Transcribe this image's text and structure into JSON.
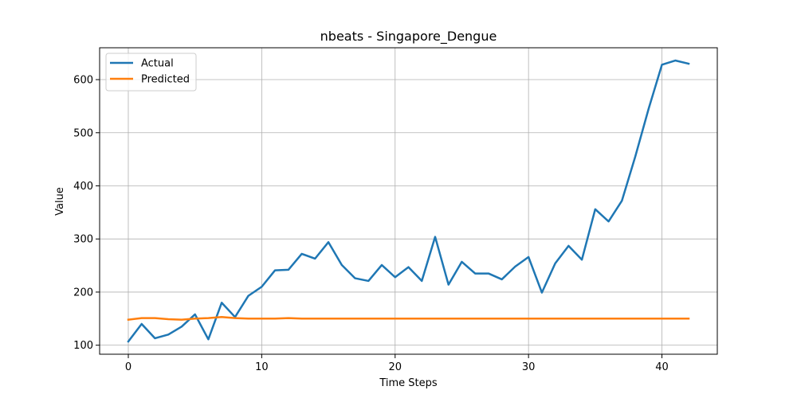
{
  "chart_data": {
    "type": "line",
    "title": "nbeats - Singapore_Dengue",
    "xlabel": "Time Steps",
    "ylabel": "Value",
    "xlim": [
      -2.15,
      44.15
    ],
    "ylim": [
      83,
      660
    ],
    "xticks": [
      0,
      10,
      20,
      30,
      40
    ],
    "yticks": [
      100,
      200,
      300,
      400,
      500,
      600
    ],
    "grid": true,
    "legend": "top-left",
    "x": [
      0,
      1,
      2,
      3,
      4,
      5,
      6,
      7,
      8,
      9,
      10,
      11,
      12,
      13,
      14,
      15,
      16,
      17,
      18,
      19,
      20,
      21,
      22,
      23,
      24,
      25,
      26,
      27,
      28,
      29,
      30,
      31,
      32,
      33,
      34,
      35,
      36,
      37,
      38,
      39,
      40,
      41,
      42
    ],
    "series": [
      {
        "name": "Actual",
        "color": "#1f77b4",
        "values": [
          107,
          140,
          113,
          120,
          135,
          158,
          111,
          180,
          153,
          193,
          210,
          241,
          242,
          272,
          263,
          294,
          251,
          226,
          221,
          251,
          228,
          247,
          221,
          304,
          214,
          257,
          235,
          235,
          224,
          248,
          266,
          199,
          254,
          287,
          261,
          356,
          333,
          372,
          455,
          545,
          628,
          636,
          630
        ]
      },
      {
        "name": "Predicted",
        "color": "#ff7f0e",
        "values": [
          148,
          151,
          151,
          149,
          148,
          150,
          151,
          153,
          151,
          150,
          150,
          150,
          151,
          150,
          150,
          150,
          150,
          150,
          150,
          150,
          150,
          150,
          150,
          150,
          150,
          150,
          150,
          150,
          150,
          150,
          150,
          150,
          150,
          150,
          150,
          150,
          150,
          150,
          150,
          150,
          150,
          150,
          150
        ]
      }
    ]
  }
}
